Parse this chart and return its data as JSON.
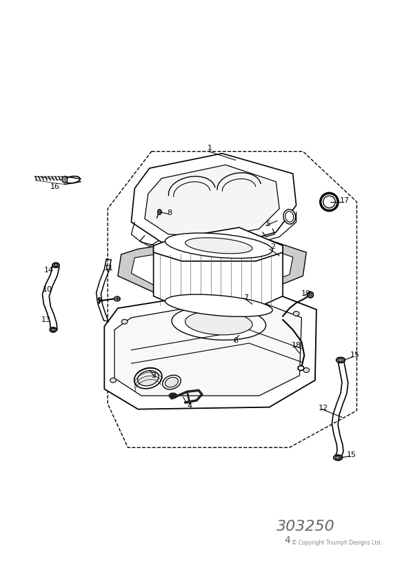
{
  "bg_color": "#ffffff",
  "line_color": "#000000",
  "title_number": "303250",
  "page_number": "4",
  "copyright": "© Copyright Triumph Designs Ltd.",
  "figsize": [
    5.83,
    8.24
  ],
  "dpi": 100
}
